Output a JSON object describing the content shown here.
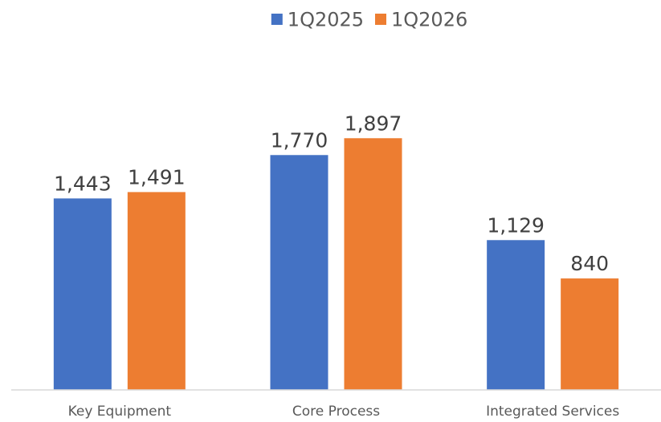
{
  "chart_data": {
    "type": "bar",
    "title": "",
    "xlabel": "",
    "ylabel": "",
    "categories": [
      "Key Equipment",
      "Core Process",
      "Integrated Services"
    ],
    "series": [
      {
        "name": "1Q2025",
        "values": [
          1443,
          1770,
          1129
        ],
        "labels": [
          "1,443",
          "1,770",
          "1,129"
        ],
        "color": "#4472C4"
      },
      {
        "name": "1Q2026",
        "values": [
          1491,
          1897,
          840
        ],
        "labels": [
          "1,491",
          "1,897",
          "840"
        ],
        "color": "#ED7D31"
      }
    ],
    "ylim": [
      0,
      2600
    ],
    "grid": false,
    "legend": "top-center",
    "data_labels": true,
    "axis_color": "#D9D9D9"
  }
}
